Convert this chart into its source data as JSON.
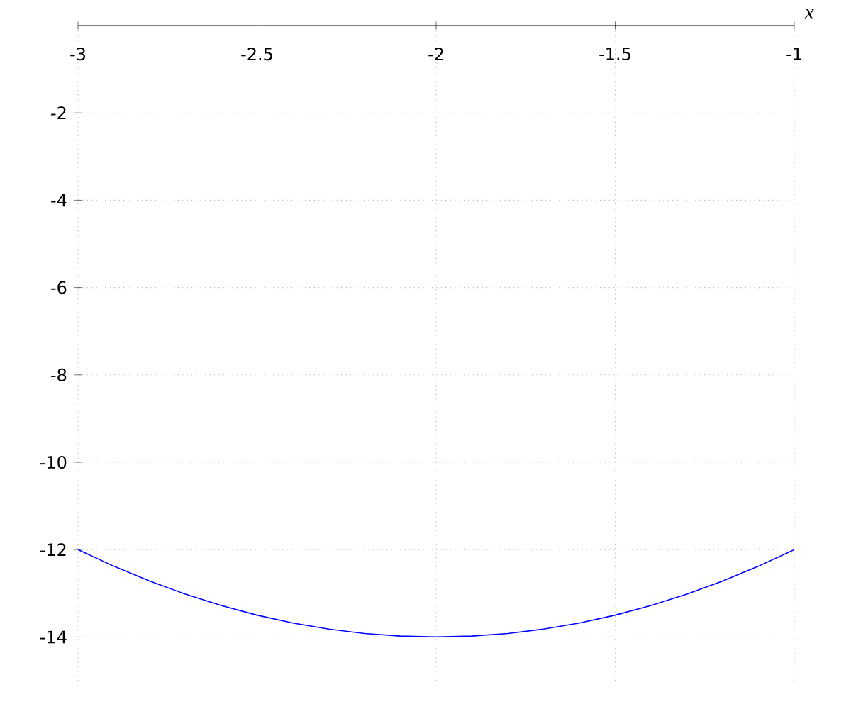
{
  "chart_data": {
    "type": "line",
    "xlabel": "x",
    "x": [
      -3,
      -2.9,
      -2.8,
      -2.7,
      -2.6,
      -2.5,
      -2.4,
      -2.3,
      -2.2,
      -2.1,
      -2,
      -1.9,
      -1.8,
      -1.7,
      -1.6,
      -1.5,
      -1.4,
      -1.3,
      -1.2,
      -1.1,
      -1
    ],
    "series": [
      {
        "color": "#0000ff",
        "values": [
          -12,
          -12.38,
          -12.72,
          -13.02,
          -13.28,
          -13.5,
          -13.68,
          -13.82,
          -13.92,
          -13.98,
          -14,
          -13.98,
          -13.92,
          -13.82,
          -13.68,
          -13.5,
          -13.28,
          -13.02,
          -12.72,
          -12.38,
          -12
        ]
      }
    ],
    "xlim": [
      -3,
      -1
    ],
    "ylim": [
      -15,
      0
    ],
    "xticks": [
      -3,
      -2.5,
      -2,
      -1.5,
      -1
    ],
    "yticks": [
      -14,
      -12,
      -10,
      -8,
      -6,
      -4,
      -2
    ],
    "grid": true,
    "marker": "none",
    "line_style": "solid"
  }
}
